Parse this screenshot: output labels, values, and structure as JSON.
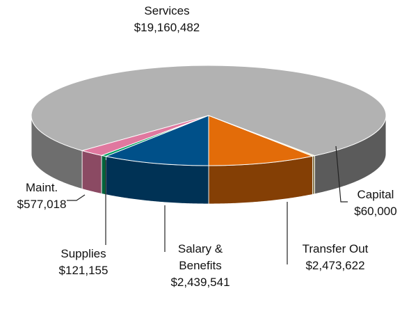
{
  "chart_data": {
    "type": "pie3d",
    "categories": [
      "Transfer Out",
      "Capital",
      "Services",
      "Maint.",
      "Supplies",
      "Salary & Benefits"
    ],
    "values": [
      2473622,
      60000,
      19160482,
      577018,
      121155,
      2439541
    ],
    "value_labels": [
      "$2,473,622",
      "$60,000",
      "$19,160,482",
      "$577,018",
      "$121,155",
      "$2,439,541"
    ],
    "colors": [
      "#e36c09",
      "#ffe699",
      "#b2b2b2",
      "#e0789f",
      "#00a060",
      "#005089"
    ]
  }
}
